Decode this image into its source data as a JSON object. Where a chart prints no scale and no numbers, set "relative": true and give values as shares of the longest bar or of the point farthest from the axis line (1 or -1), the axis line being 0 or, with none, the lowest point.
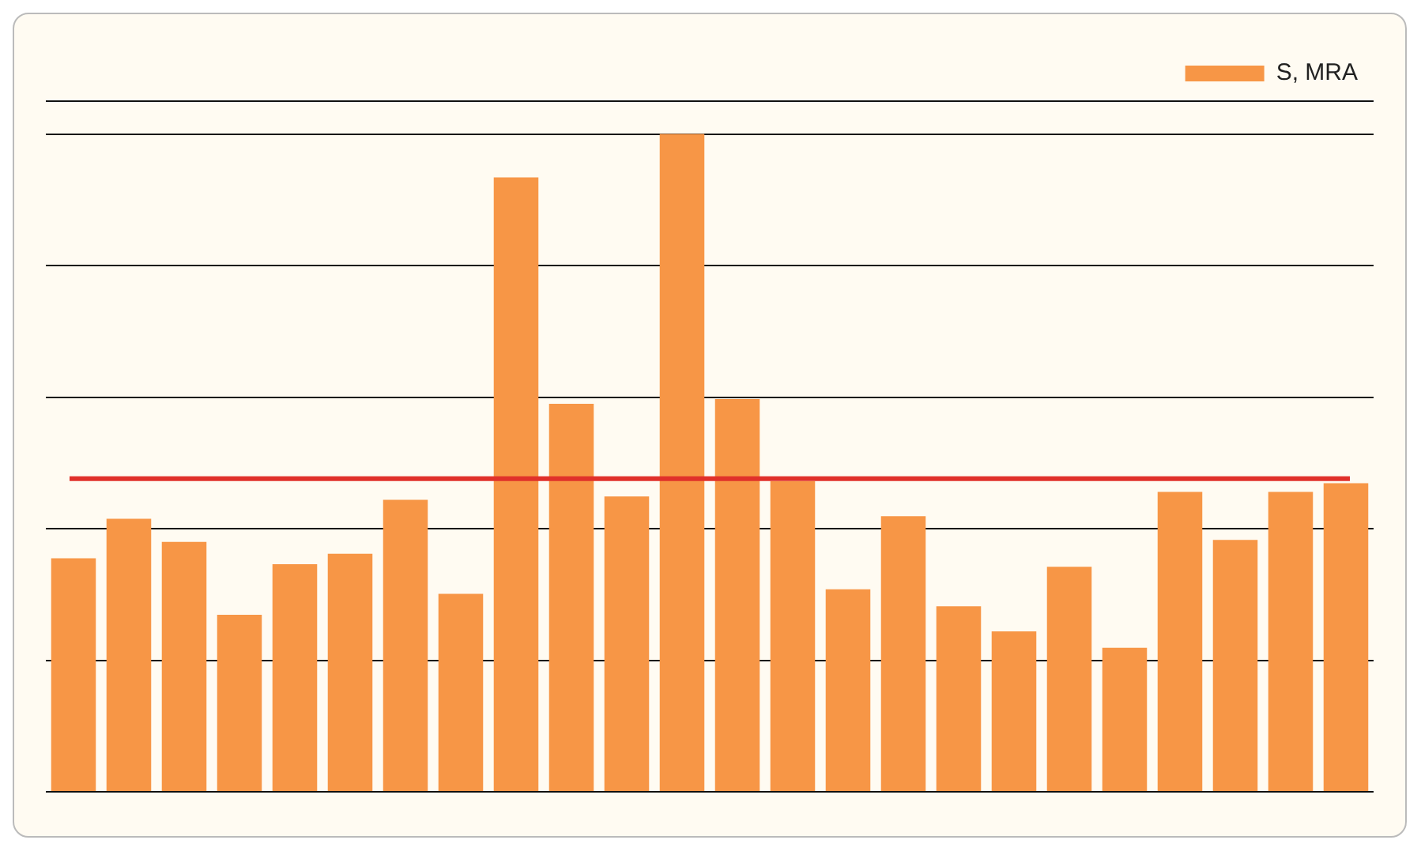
{
  "chart_data": {
    "type": "bar",
    "relative": true,
    "categories": [
      null,
      null,
      null,
      null,
      null,
      null,
      null,
      null,
      null,
      null,
      null,
      null,
      null,
      null,
      null,
      null,
      null,
      null,
      null,
      null,
      null,
      null,
      null,
      null
    ],
    "series": [
      {
        "name": "S, MRA",
        "color": "#f79646",
        "values": [
          0.355,
          0.415,
          0.38,
          0.269,
          0.346,
          0.362,
          0.444,
          0.301,
          0.934,
          0.59,
          0.449,
          1,
          0.597,
          0.472,
          0.308,
          0.419,
          0.282,
          0.244,
          0.342,
          0.219,
          0.456,
          0.383,
          0.456,
          0.469
        ]
      }
    ],
    "ref_lines": [
      {
        "axis": "y",
        "value": 0.476,
        "color": "#e0302a"
      }
    ],
    "grid": "y",
    "legend": "top right"
  }
}
